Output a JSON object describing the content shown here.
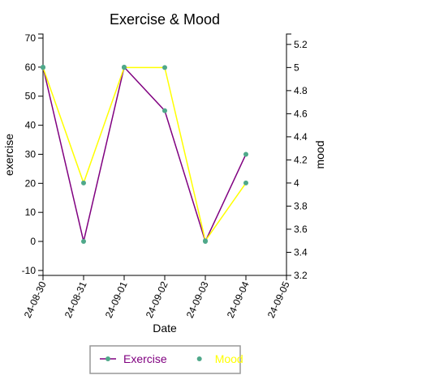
{
  "chart_data": {
    "type": "line",
    "title": "Exercise & Mood",
    "x_label": "Date",
    "y_label": "exercise",
    "y2_label": "mood",
    "categories": [
      "24-08-30",
      "24-08-31",
      "24-09-01",
      "24-09-02",
      "24-09-03",
      "24-09-04",
      "24-09-05"
    ],
    "series": [
      {
        "name": "Exercise",
        "color": "purple",
        "marker_color": "#4fa88a",
        "values": [
          60,
          0,
          60,
          45,
          0,
          30,
          null
        ]
      },
      {
        "name": "Mood",
        "color": "yellow",
        "marker_color": "#4fa88a",
        "axis": "y2",
        "values": [
          5.0,
          4.0,
          5.0,
          5.0,
          3.5,
          4.0,
          null
        ]
      }
    ],
    "ylim": [
      -11.7,
      71.4
    ],
    "yticks": [
      -10,
      0,
      10,
      20,
      30,
      40,
      50,
      60,
      70
    ],
    "y2lim": [
      3.2,
      5.29
    ],
    "y2ticks": [
      3.2,
      3.4,
      3.6,
      3.8,
      4.0,
      4.2,
      4.4,
      4.6,
      4.8,
      5.0,
      5.2
    ],
    "legend": "bottom"
  }
}
